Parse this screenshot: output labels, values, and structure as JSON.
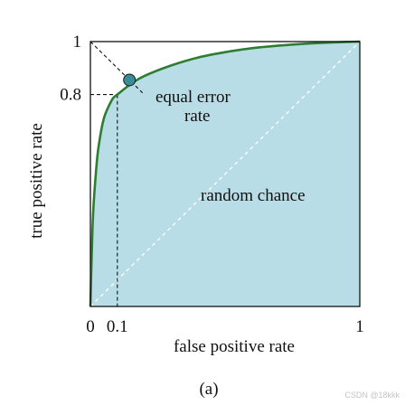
{
  "chart_data": {
    "type": "line",
    "title": "",
    "xlabel": "false positive rate",
    "ylabel": "true positive rate",
    "xlim": [
      0,
      1
    ],
    "ylim": [
      0,
      1
    ],
    "x_ticks": [
      {
        "value": 0,
        "label": "0"
      },
      {
        "value": 0.1,
        "label": "0.1"
      },
      {
        "value": 1,
        "label": "1"
      }
    ],
    "y_ticks": [
      {
        "value": 0.8,
        "label": "0.8"
      },
      {
        "value": 1,
        "label": "1"
      }
    ],
    "roc_curve": {
      "color": "#2e7d32",
      "fill": "#b9dde6",
      "x": [
        0,
        0.005,
        0.01,
        0.02,
        0.03,
        0.05,
        0.08,
        0.1,
        0.15,
        0.2,
        0.3,
        0.4,
        0.5,
        0.6,
        0.7,
        0.8,
        0.9,
        1.0
      ],
      "y": [
        0,
        0.2,
        0.35,
        0.5,
        0.6,
        0.71,
        0.78,
        0.8,
        0.84,
        0.87,
        0.91,
        0.94,
        0.96,
        0.975,
        0.985,
        0.992,
        0.997,
        1.0
      ]
    },
    "random_chance_line": {
      "x": [
        0,
        1
      ],
      "y": [
        0,
        1
      ]
    },
    "equal_error_line": {
      "x": [
        0,
        0.2
      ],
      "y": [
        1,
        0.8
      ]
    },
    "eer_point": {
      "x": 0.145,
      "y": 0.855,
      "color": "#3a8d96"
    },
    "guide_x": 0.1,
    "guide_y": 0.8,
    "annotations": {
      "equal_error": [
        "equal error",
        "rate"
      ],
      "random_chance": "random chance"
    }
  },
  "caption": "(a)",
  "watermark": "CSDN @18kkk"
}
